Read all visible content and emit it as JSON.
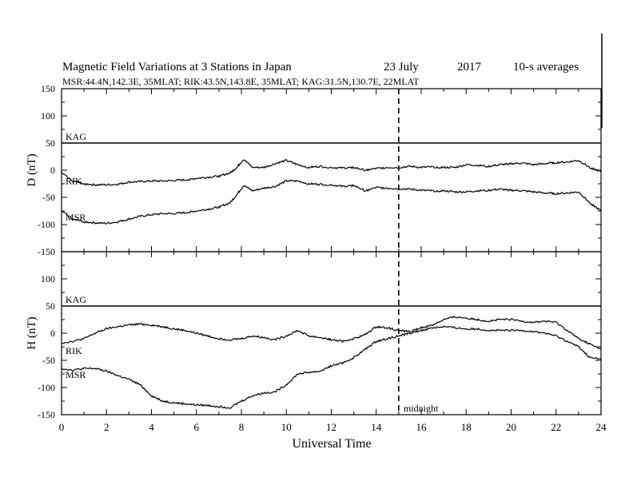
{
  "title": "Magnetic Field Variations at 3 Stations in Japan",
  "date_label": "23 July",
  "year_label": "2017",
  "avg_label": "10-s averages",
  "subtitle": "MSR:44.4N,142.3E, 35MLAT;  RIK:43.5N,143.8E, 35MLAT;  KAG:31.5N,130.7E, 22MLAT",
  "xlabel": "Universal Time",
  "midnight_label": "midnight",
  "chart_data": [
    {
      "type": "line",
      "panel": "top",
      "ylabel": "D (nT)",
      "xlim": [
        0,
        24
      ],
      "ylim": [
        -150,
        150
      ],
      "x_ticks": [
        "0",
        "2",
        "4",
        "6",
        "8",
        "10",
        "12",
        "14",
        "16",
        "18",
        "20",
        "22",
        "24"
      ],
      "y_ticks": [
        "150",
        "100",
        "50",
        "0",
        "-50",
        "-100",
        "-150"
      ],
      "vline_x": 15,
      "series": [
        {
          "name": "KAG",
          "x": [
            0,
            24
          ],
          "y": [
            50,
            50
          ]
        },
        {
          "name": "RIK",
          "x": [
            0,
            0.5,
            1,
            1.5,
            2,
            2.5,
            3,
            3.5,
            4,
            4.5,
            5,
            5.5,
            6,
            6.5,
            7,
            7.5,
            7.8,
            8.1,
            8.5,
            9,
            9.5,
            10,
            10.5,
            11,
            11.5,
            12,
            12.5,
            13,
            13.5,
            14,
            14.5,
            15,
            15.5,
            16,
            16.5,
            17,
            17.5,
            18,
            18.5,
            19,
            19.5,
            20,
            20.5,
            21,
            21.5,
            22,
            22.5,
            23,
            23.5,
            24
          ],
          "y": [
            -5,
            -20,
            -25,
            -27,
            -27,
            -26,
            -22,
            -21,
            -20,
            -20,
            -19,
            -18,
            -15,
            -13,
            -11,
            -5,
            5,
            20,
            5,
            5,
            12,
            18,
            10,
            5,
            7,
            5,
            4,
            5,
            0,
            3,
            5,
            5,
            7,
            5,
            6,
            5,
            5,
            10,
            9,
            7,
            10,
            12,
            13,
            10,
            12,
            14,
            15,
            18,
            5,
            -3
          ]
        },
        {
          "name": "MSR",
          "x": [
            0,
            0.5,
            1,
            1.5,
            2,
            2.5,
            3,
            3.5,
            4,
            4.5,
            5,
            5.5,
            6,
            6.5,
            7,
            7.5,
            7.8,
            8.1,
            8.5,
            9,
            9.5,
            10,
            10.5,
            11,
            11.5,
            12,
            12.5,
            13,
            13.5,
            14,
            14.5,
            15,
            15.5,
            16,
            16.5,
            17,
            17.5,
            18,
            18.5,
            19,
            19.5,
            20,
            20.5,
            21,
            21.5,
            22,
            22.5,
            23,
            23.5,
            24
          ],
          "y": [
            -75,
            -90,
            -95,
            -97,
            -98,
            -95,
            -90,
            -85,
            -82,
            -80,
            -80,
            -78,
            -75,
            -72,
            -68,
            -60,
            -45,
            -28,
            -38,
            -33,
            -30,
            -20,
            -20,
            -25,
            -26,
            -27,
            -30,
            -28,
            -38,
            -32,
            -33,
            -34,
            -35,
            -37,
            -38,
            -38,
            -40,
            -40,
            -38,
            -37,
            -35,
            -37,
            -38,
            -40,
            -42,
            -43,
            -42,
            -40,
            -60,
            -75
          ]
        }
      ]
    },
    {
      "type": "line",
      "panel": "bottom",
      "ylabel": "H (nT)",
      "xlim": [
        0,
        24
      ],
      "ylim": [
        -150,
        150
      ],
      "x_ticks": [
        "0",
        "2",
        "4",
        "6",
        "8",
        "10",
        "12",
        "14",
        "16",
        "18",
        "20",
        "22",
        "24"
      ],
      "y_ticks": [
        "150",
        "100",
        "50",
        "0",
        "-50",
        "-100",
        "-150"
      ],
      "vline_x": 15,
      "series": [
        {
          "name": "KAG",
          "x": [
            0,
            24
          ],
          "y": [
            50,
            50
          ]
        },
        {
          "name": "RIK",
          "x": [
            0,
            0.5,
            1,
            1.5,
            2,
            2.5,
            3,
            3.5,
            4,
            4.5,
            5,
            5.5,
            6,
            6.5,
            7,
            7.5,
            8,
            8.5,
            9,
            9.5,
            10,
            10.5,
            11,
            11.5,
            12,
            12.5,
            13,
            13.5,
            14,
            14.5,
            15,
            15.5,
            16,
            16.5,
            17,
            17.5,
            18,
            18.5,
            19,
            19.5,
            20,
            20.5,
            21,
            21.5,
            22,
            22.5,
            23,
            23.5,
            24
          ],
          "y": [
            -18,
            -15,
            -10,
            0,
            8,
            12,
            15,
            17,
            15,
            12,
            8,
            5,
            0,
            -5,
            -10,
            -12,
            -10,
            -5,
            -8,
            -12,
            -5,
            5,
            -5,
            -8,
            -12,
            -15,
            -10,
            -3,
            12,
            10,
            5,
            3,
            10,
            15,
            25,
            30,
            28,
            25,
            22,
            25,
            25,
            22,
            20,
            22,
            20,
            5,
            -10,
            -20,
            -30
          ]
        },
        {
          "name": "MSR",
          "x": [
            0,
            0.5,
            1,
            1.5,
            2,
            2.5,
            3,
            3.5,
            4,
            4.5,
            5,
            5.5,
            6,
            6.5,
            7,
            7.5,
            8,
            8.5,
            9,
            9.5,
            10,
            10.5,
            11,
            11.5,
            12,
            12.5,
            13,
            13.5,
            14,
            14.5,
            15,
            15.5,
            16,
            16.5,
            17,
            17.5,
            18,
            18.5,
            19,
            19.5,
            20,
            20.5,
            21,
            21.5,
            22,
            22.5,
            23,
            23.5,
            24
          ],
          "y": [
            -65,
            -68,
            -65,
            -65,
            -70,
            -78,
            -85,
            -95,
            -115,
            -125,
            -128,
            -130,
            -132,
            -133,
            -135,
            -137,
            -125,
            -115,
            -110,
            -108,
            -95,
            -75,
            -72,
            -70,
            -60,
            -55,
            -45,
            -30,
            -15,
            -10,
            -5,
            0,
            5,
            10,
            12,
            10,
            8,
            8,
            5,
            5,
            5,
            5,
            3,
            0,
            -5,
            -15,
            -25,
            -45,
            -48
          ]
        }
      ]
    }
  ]
}
